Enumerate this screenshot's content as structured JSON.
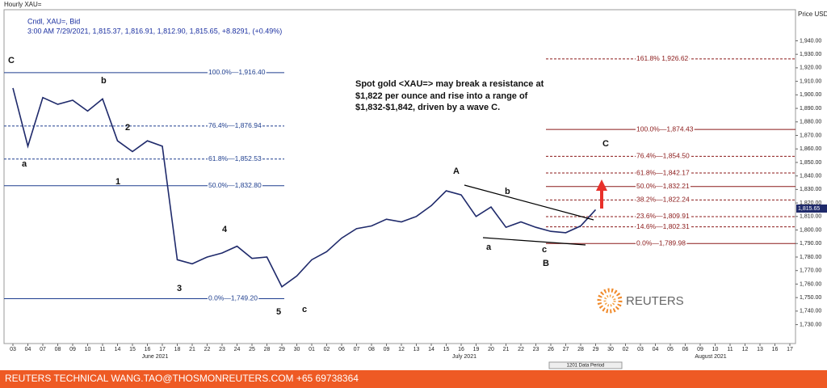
{
  "chart_data": {
    "type": "line",
    "title": "Hourly XAU=",
    "subtitle": "Cndl, XAU=, Bid",
    "quote": "3:00 AM 7/29/2021, 1,815.37, 1,816.91, 1,812.90, 1,815.65, +8.8291, (+0.49%)",
    "y_axis_label": "Price USD Ozs",
    "current_price_label": "1,815.65",
    "categories": [
      "03",
      "04",
      "07",
      "08",
      "09",
      "10",
      "11",
      "14",
      "15",
      "16",
      "17",
      "18",
      "21",
      "22",
      "23",
      "24",
      "25",
      "28",
      "29",
      "30",
      "01",
      "02",
      "06",
      "07",
      "08",
      "09",
      "12",
      "13",
      "14",
      "15",
      "16",
      "19",
      "20",
      "21",
      "22",
      "23",
      "26",
      "27",
      "28",
      "29",
      "30",
      "02",
      "03",
      "04",
      "05",
      "06",
      "09",
      "10",
      "11",
      "12",
      "13",
      "16",
      "17"
    ],
    "months": [
      "June 2021",
      "July 2021",
      "August 2021"
    ],
    "series": [
      {
        "name": "XAU=",
        "color": "#1f2a6b",
        "values": [
          1905,
          1862,
          1898,
          1893,
          1896,
          1888,
          1897,
          1866,
          1858,
          1866,
          1862,
          1778,
          1775,
          1780,
          1783,
          1788,
          1779,
          1780,
          1758,
          1766,
          1778,
          1784,
          1794,
          1801,
          1803,
          1808,
          1806,
          1810,
          1818,
          1829,
          1826,
          1810,
          1817,
          1802,
          1806,
          1802,
          1799,
          1798,
          1803,
          1815,
          null,
          null,
          null,
          null,
          null,
          null,
          null,
          null,
          null,
          null,
          null,
          null,
          null
        ]
      }
    ],
    "ylim": [
      1716,
      1963
    ],
    "yticks": [
      {
        "value": 1730,
        "label": "1,730.00"
      },
      {
        "value": 1740,
        "label": "1,740.00"
      },
      {
        "value": 1750,
        "label": "1,750.00"
      },
      {
        "value": 1760,
        "label": "1,760.00"
      },
      {
        "value": 1770,
        "label": "1,770.00"
      },
      {
        "value": 1780,
        "label": "1,780.00"
      },
      {
        "value": 1790,
        "label": "1,790.00"
      },
      {
        "value": 1800,
        "label": "1,800.00"
      },
      {
        "value": 1810,
        "label": "1,810.00"
      },
      {
        "value": 1820,
        "label": "1,820.00"
      },
      {
        "value": 1830,
        "label": "1,830.00"
      },
      {
        "value": 1840,
        "label": "1,840.00"
      },
      {
        "value": 1850,
        "label": "1,850.00"
      },
      {
        "value": 1860,
        "label": "1,860.00"
      },
      {
        "value": 1870,
        "label": "1,870.00"
      },
      {
        "value": 1880,
        "label": "1,880.00"
      },
      {
        "value": 1890,
        "label": "1,890.00"
      },
      {
        "value": 1900,
        "label": "1,900.00"
      },
      {
        "value": 1910,
        "label": "1,910.00"
      },
      {
        "value": 1920,
        "label": "1,920.00"
      },
      {
        "value": 1930,
        "label": "1,930.00"
      },
      {
        "value": 1940,
        "label": "1,940.00"
      }
    ],
    "grid": false,
    "fib_left": {
      "color": "#1f3f8f",
      "levels": [
        {
          "value": 1916.4,
          "label": "100.0%—1,916.40",
          "dashed": false
        },
        {
          "value": 1876.94,
          "label": "76.4%—1,876.94",
          "dashed": true
        },
        {
          "value": 1852.53,
          "label": "61.8%—1,852.53",
          "dashed": true
        },
        {
          "value": 1832.8,
          "label": "50.0%—1,832.80",
          "dashed": false
        },
        {
          "value": 1749.2,
          "label": "0.0%—1,749.20",
          "dashed": false
        }
      ]
    },
    "fib_right": {
      "color": "#8b1a1a",
      "levels": [
        {
          "value": 1926.62,
          "label": "161.8% 1,926.62",
          "dashed": true
        },
        {
          "value": 1874.43,
          "label": "100.0%—1,874.43",
          "dashed": false
        },
        {
          "value": 1854.5,
          "label": "76.4%—1,854.50",
          "dashed": true
        },
        {
          "value": 1842.17,
          "label": "61.8%—1,842.17",
          "dashed": true
        },
        {
          "value": 1832.21,
          "label": "50.0%—1,832.21",
          "dashed": false
        },
        {
          "value": 1822.24,
          "label": "38.2%—1,822.24",
          "dashed": true
        },
        {
          "value": 1809.91,
          "label": "23.6%—1,809.91",
          "dashed": true
        },
        {
          "value": 1802.31,
          "label": "14.6%—1,802.31",
          "dashed": true
        },
        {
          "value": 1789.98,
          "label": "0.0%—1,789.98",
          "dashed": false
        }
      ]
    },
    "waves": [
      "C",
      "a",
      "b",
      "2",
      "1",
      "3",
      "4",
      "5",
      "c",
      "A",
      "b",
      "a",
      "c",
      "B",
      "C"
    ],
    "note": [
      "Spot gold <XAU=> may break a resistance at",
      "$1,822 per ounce and rise into a range of",
      "$1,832-$1,842, driven by a wave C."
    ],
    "data_period": "1201 Data Period",
    "logo": "REUTERS",
    "footer": "REUTERS TECHNICAL  WANG.TAO@THOSMONREUTERS.COM  +65 69738364"
  }
}
